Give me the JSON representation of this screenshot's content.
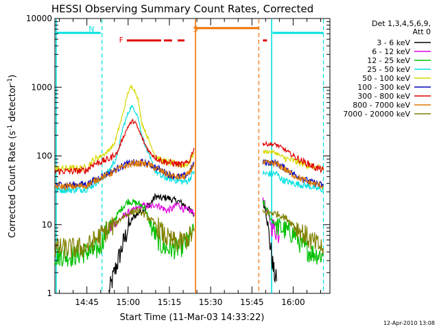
{
  "chart_data": {
    "type": "line",
    "title": "HESSI Observing Summary Count Rates, Corrected",
    "xlabel": "Start Time (11-Mar-03 14:33:22)",
    "ylabel_main": "Corrected Count Rate (s",
    "ylabel_sup1": "-1",
    "ylabel_mid": " detector",
    "ylabel_sup2": "-1",
    "ylabel_end": ")",
    "y_scale": "log",
    "ylim": [
      1,
      10000
    ],
    "xlim": [
      "14:33:22",
      "16:13:22"
    ],
    "x_ticks": [
      "14:45",
      "15:00",
      "15:15",
      "15:30",
      "15:45",
      "16:00"
    ],
    "y_ticks": [
      "1",
      "10",
      "100",
      "1000",
      "10000"
    ],
    "legend_header": [
      "Det 1,3,4,5,6,9,",
      "Att 0"
    ],
    "legend_position": "right",
    "timestamp": "12-Apr-2010 13:08",
    "annotations": [
      {
        "label": "N",
        "time": "14:46:40",
        "color": "#00e0e0"
      },
      {
        "label": "F",
        "time": "14:57:30",
        "color": "#e00000"
      },
      {
        "label": "S",
        "time": "15:24:30",
        "color": "#f07000"
      }
    ],
    "flag_bars": [
      {
        "name": "night",
        "color": "#00e0e0",
        "ranges": [
          [
            "14:33:22",
            "14:50:00"
          ],
          [
            "15:52:30",
            "16:11:00"
          ]
        ]
      },
      {
        "name": "flare",
        "color": "#e00000",
        "ranges": [
          [
            "14:59:30",
            "15:12:00"
          ],
          [
            "15:13:00",
            "15:16:00"
          ],
          [
            "15:18:00",
            "15:20:30"
          ],
          [
            "15:49:00",
            "15:50:30"
          ]
        ]
      },
      {
        "name": "saa",
        "color": "#f07000",
        "ranges": [
          [
            "15:24:30",
            "15:47:30"
          ]
        ]
      }
    ],
    "vlines": [
      {
        "time": "14:33:50",
        "color": "#00e0e0",
        "style": "solid"
      },
      {
        "time": "14:50:30",
        "color": "#00e0e0",
        "style": "dashed"
      },
      {
        "time": "15:24:30",
        "color": "#f07000",
        "style": "solid"
      },
      {
        "time": "15:47:30",
        "color": "#f07000",
        "style": "dashed"
      },
      {
        "time": "15:52:10",
        "color": "#00e0e0",
        "style": "solid"
      },
      {
        "time": "16:11:00",
        "color": "#00e0e0",
        "style": "dashed"
      }
    ],
    "gap": [
      "15:24:30",
      "15:48:30"
    ],
    "series": [
      {
        "name": "3 - 6 keV",
        "color": "#000000",
        "points": [
          [
            "14:53:00",
            1
          ],
          [
            "14:55:00",
            2
          ],
          [
            "14:58:00",
            5
          ],
          [
            "15:00:00",
            9
          ],
          [
            "15:02:00",
            13
          ],
          [
            "15:04:00",
            15
          ],
          [
            "15:06:00",
            17
          ],
          [
            "15:08:00",
            20
          ],
          [
            "15:10:00",
            26
          ],
          [
            "15:12:00",
            24
          ],
          [
            "15:14:00",
            25
          ],
          [
            "15:16:00",
            23
          ],
          [
            "15:18:00",
            22
          ],
          [
            "15:20:00",
            20
          ],
          [
            "15:22:00",
            17
          ],
          [
            "15:24:00",
            14
          ],
          [
            "15:49:00",
            22
          ],
          [
            "15:50:00",
            16
          ],
          [
            "15:51:00",
            8
          ],
          [
            "15:52:00",
            4
          ],
          [
            "15:53:00",
            2
          ],
          [
            "15:54:00",
            1.5
          ]
        ]
      },
      {
        "name": "6 - 12 keV",
        "color": "#e000e0",
        "points": [
          [
            "14:53:00",
            9
          ],
          [
            "14:55:00",
            10
          ],
          [
            "14:58:00",
            13
          ],
          [
            "15:00:00",
            15
          ],
          [
            "15:02:00",
            16
          ],
          [
            "15:04:00",
            18
          ],
          [
            "15:06:00",
            19
          ],
          [
            "15:08:00",
            18
          ],
          [
            "15:10:00",
            20
          ],
          [
            "15:12:00",
            18
          ],
          [
            "15:14:00",
            16
          ],
          [
            "15:16:00",
            17
          ],
          [
            "15:18:00",
            20
          ],
          [
            "15:20:00",
            17
          ],
          [
            "15:22:00",
            16
          ],
          [
            "15:24:00",
            15
          ],
          [
            "15:49:00",
            24
          ],
          [
            "15:50:00",
            18
          ],
          [
            "15:52:00",
            10
          ],
          [
            "15:54:00",
            8
          ],
          [
            "15:55:00",
            7
          ]
        ]
      },
      {
        "name": "12 - 25 keV",
        "color": "#00c000",
        "points": [
          [
            "14:33:22",
            3.5
          ],
          [
            "14:40:00",
            3.5
          ],
          [
            "14:45:00",
            4
          ],
          [
            "14:48:00",
            4
          ],
          [
            "14:50:00",
            5
          ],
          [
            "14:52:00",
            8
          ],
          [
            "14:55:00",
            12
          ],
          [
            "14:58:00",
            18
          ],
          [
            "15:00:00",
            22
          ],
          [
            "15:02:00",
            21
          ],
          [
            "15:04:00",
            20
          ],
          [
            "15:06:00",
            18
          ],
          [
            "15:08:00",
            10
          ],
          [
            "15:10:00",
            7
          ],
          [
            "15:12:00",
            5
          ],
          [
            "15:14:00",
            4.5
          ],
          [
            "15:16:00",
            4.5
          ],
          [
            "15:18:00",
            4.5
          ],
          [
            "15:20:00",
            5
          ],
          [
            "15:22:00",
            6
          ],
          [
            "15:24:00",
            8
          ],
          [
            "15:49:00",
            22
          ],
          [
            "15:52:00",
            12
          ],
          [
            "15:55:00",
            9
          ],
          [
            "15:58:00",
            8
          ],
          [
            "16:01:00",
            7
          ],
          [
            "16:03:00",
            5
          ],
          [
            "16:06:00",
            4
          ],
          [
            "16:11:00",
            3.5
          ]
        ]
      },
      {
        "name": "25 - 50 keV",
        "color": "#00e0e0",
        "points": [
          [
            "14:33:22",
            32
          ],
          [
            "14:40:00",
            32
          ],
          [
            "14:45:00",
            33
          ],
          [
            "14:48:00",
            40
          ],
          [
            "14:50:00",
            45
          ],
          [
            "14:53:00",
            60
          ],
          [
            "14:56:00",
            100
          ],
          [
            "14:58:00",
            250
          ],
          [
            "15:00:00",
            420
          ],
          [
            "15:01:00",
            520
          ],
          [
            "15:02:00",
            500
          ],
          [
            "15:03:30",
            380
          ],
          [
            "15:05:00",
            200
          ],
          [
            "15:08:00",
            90
          ],
          [
            "15:10:00",
            60
          ],
          [
            "15:12:00",
            50
          ],
          [
            "15:15:00",
            47
          ],
          [
            "15:18:00",
            44
          ],
          [
            "15:20:00",
            42
          ],
          [
            "15:22:00",
            44
          ],
          [
            "15:24:00",
            60
          ],
          [
            "15:49:00",
            55
          ],
          [
            "15:52:00",
            55
          ],
          [
            "15:54:00",
            55
          ],
          [
            "15:56:00",
            45
          ],
          [
            "15:58:00",
            42
          ],
          [
            "16:00:00",
            40
          ],
          [
            "16:03:00",
            38
          ],
          [
            "16:06:00",
            36
          ],
          [
            "16:08:00",
            34
          ],
          [
            "16:11:00",
            32
          ]
        ]
      },
      {
        "name": "50 - 100 keV",
        "color": "#d8d800",
        "points": [
          [
            "14:33:22",
            65
          ],
          [
            "14:40:00",
            66
          ],
          [
            "14:45:00",
            67
          ],
          [
            "14:47:00",
            85
          ],
          [
            "14:50:00",
            100
          ],
          [
            "14:52:00",
            110
          ],
          [
            "14:55:00",
            150
          ],
          [
            "14:58:00",
            400
          ],
          [
            "15:00:00",
            850
          ],
          [
            "15:01:00",
            1000
          ],
          [
            "15:02:00",
            980
          ],
          [
            "15:03:30",
            700
          ],
          [
            "15:05:00",
            300
          ],
          [
            "15:08:00",
            150
          ],
          [
            "15:10:00",
            100
          ],
          [
            "15:12:00",
            85
          ],
          [
            "15:15:00",
            80
          ],
          [
            "15:18:00",
            75
          ],
          [
            "15:20:00",
            73
          ],
          [
            "15:22:00",
            78
          ],
          [
            "15:24:00",
            110
          ],
          [
            "15:49:00",
            115
          ],
          [
            "15:52:00",
            115
          ],
          [
            "15:54:00",
            110
          ],
          [
            "15:56:00",
            95
          ],
          [
            "15:58:00",
            90
          ],
          [
            "16:00:00",
            85
          ],
          [
            "16:03:00",
            78
          ],
          [
            "16:06:00",
            72
          ],
          [
            "16:08:00",
            68
          ],
          [
            "16:11:00",
            64
          ]
        ]
      },
      {
        "name": "100 - 300 keV",
        "color": "#0000c0",
        "points": [
          [
            "14:33:22",
            38
          ],
          [
            "14:40:00",
            38
          ],
          [
            "14:45:00",
            39
          ],
          [
            "14:48:00",
            45
          ],
          [
            "14:50:00",
            50
          ],
          [
            "14:53:00",
            56
          ],
          [
            "14:56:00",
            65
          ],
          [
            "14:59:00",
            75
          ],
          [
            "15:02:00",
            80
          ],
          [
            "15:05:00",
            80
          ],
          [
            "15:08:00",
            75
          ],
          [
            "15:10:00",
            68
          ],
          [
            "15:12:00",
            62
          ],
          [
            "15:14:00",
            56
          ],
          [
            "15:16:00",
            52
          ],
          [
            "15:18:00",
            50
          ],
          [
            "15:20:00",
            50
          ],
          [
            "15:22:00",
            55
          ],
          [
            "15:24:00",
            80
          ],
          [
            "15:49:00",
            80
          ],
          [
            "15:52:00",
            80
          ],
          [
            "15:54:00",
            78
          ],
          [
            "15:56:00",
            70
          ],
          [
            "15:58:00",
            62
          ],
          [
            "16:00:00",
            55
          ],
          [
            "16:03:00",
            48
          ],
          [
            "16:06:00",
            42
          ],
          [
            "16:08:00",
            40
          ],
          [
            "16:11:00",
            37
          ]
        ]
      },
      {
        "name": "300 - 800 keV",
        "color": "#e00000",
        "points": [
          [
            "14:33:22",
            60
          ],
          [
            "14:40:00",
            60
          ],
          [
            "14:45:00",
            62
          ],
          [
            "14:47:00",
            75
          ],
          [
            "14:50:00",
            82
          ],
          [
            "14:53:00",
            90
          ],
          [
            "14:56:00",
            110
          ],
          [
            "14:58:00",
            180
          ],
          [
            "15:00:00",
            270
          ],
          [
            "15:01:30",
            320
          ],
          [
            "15:02:30",
            310
          ],
          [
            "15:04:00",
            230
          ],
          [
            "15:06:00",
            150
          ],
          [
            "15:08:00",
            110
          ],
          [
            "15:10:00",
            95
          ],
          [
            "15:12:00",
            85
          ],
          [
            "15:15:00",
            80
          ],
          [
            "15:18:00",
            76
          ],
          [
            "15:20:00",
            75
          ],
          [
            "15:22:00",
            80
          ],
          [
            "15:24:00",
            130
          ],
          [
            "15:49:00",
            150
          ],
          [
            "15:52:00",
            148
          ],
          [
            "15:54:00",
            145
          ],
          [
            "15:56:00",
            130
          ],
          [
            "15:58:00",
            115
          ],
          [
            "16:00:00",
            100
          ],
          [
            "16:03:00",
            85
          ],
          [
            "16:06:00",
            75
          ],
          [
            "16:08:00",
            68
          ],
          [
            "16:11:00",
            62
          ]
        ]
      },
      {
        "name": "800 - 7000 keV",
        "color": "#e07800",
        "points": [
          [
            "14:33:22",
            36
          ],
          [
            "14:40:00",
            36
          ],
          [
            "14:45:00",
            37
          ],
          [
            "14:48:00",
            44
          ],
          [
            "14:50:00",
            48
          ],
          [
            "14:53:00",
            54
          ],
          [
            "14:56:00",
            63
          ],
          [
            "14:59:00",
            72
          ],
          [
            "15:02:00",
            78
          ],
          [
            "15:05:00",
            78
          ],
          [
            "15:08:00",
            73
          ],
          [
            "15:10:00",
            66
          ],
          [
            "15:12:00",
            60
          ],
          [
            "15:14:00",
            55
          ],
          [
            "15:16:00",
            51
          ],
          [
            "15:18:00",
            49
          ],
          [
            "15:20:00",
            49
          ],
          [
            "15:22:00",
            54
          ],
          [
            "15:24:00",
            78
          ],
          [
            "15:49:00",
            78
          ],
          [
            "15:52:00",
            78
          ],
          [
            "15:54:00",
            76
          ],
          [
            "15:56:00",
            68
          ],
          [
            "15:58:00",
            60
          ],
          [
            "16:00:00",
            53
          ],
          [
            "16:03:00",
            46
          ],
          [
            "16:06:00",
            41
          ],
          [
            "16:08:00",
            39
          ],
          [
            "16:11:00",
            36
          ]
        ]
      },
      {
        "name": "7000 - 20000 keV",
        "color": "#808000",
        "points": [
          [
            "14:33:22",
            4.5
          ],
          [
            "14:40:00",
            4.5
          ],
          [
            "14:44:00",
            4.6
          ],
          [
            "14:46:00",
            5
          ],
          [
            "14:48:00",
            6
          ],
          [
            "14:50:00",
            7
          ],
          [
            "14:52:00",
            8
          ],
          [
            "14:55:00",
            10
          ],
          [
            "14:58:00",
            13
          ],
          [
            "15:01:00",
            15
          ],
          [
            "15:03:00",
            16
          ],
          [
            "15:05:00",
            15
          ],
          [
            "15:07:00",
            13
          ],
          [
            "15:09:00",
            11
          ],
          [
            "15:11:00",
            9
          ],
          [
            "15:13:00",
            7
          ],
          [
            "15:15:00",
            6
          ],
          [
            "15:17:00",
            5.5
          ],
          [
            "15:19:00",
            5.5
          ],
          [
            "15:21:00",
            6
          ],
          [
            "15:23:00",
            7
          ],
          [
            "15:24:00",
            8
          ],
          [
            "15:49:00",
            15
          ],
          [
            "15:52:00",
            15
          ],
          [
            "15:55:00",
            14
          ],
          [
            "15:58:00",
            12
          ],
          [
            "16:00:00",
            10
          ],
          [
            "16:03:00",
            8
          ],
          [
            "16:06:00",
            6
          ],
          [
            "16:09:00",
            5
          ],
          [
            "16:11:00",
            4.5
          ]
        ]
      }
    ]
  }
}
